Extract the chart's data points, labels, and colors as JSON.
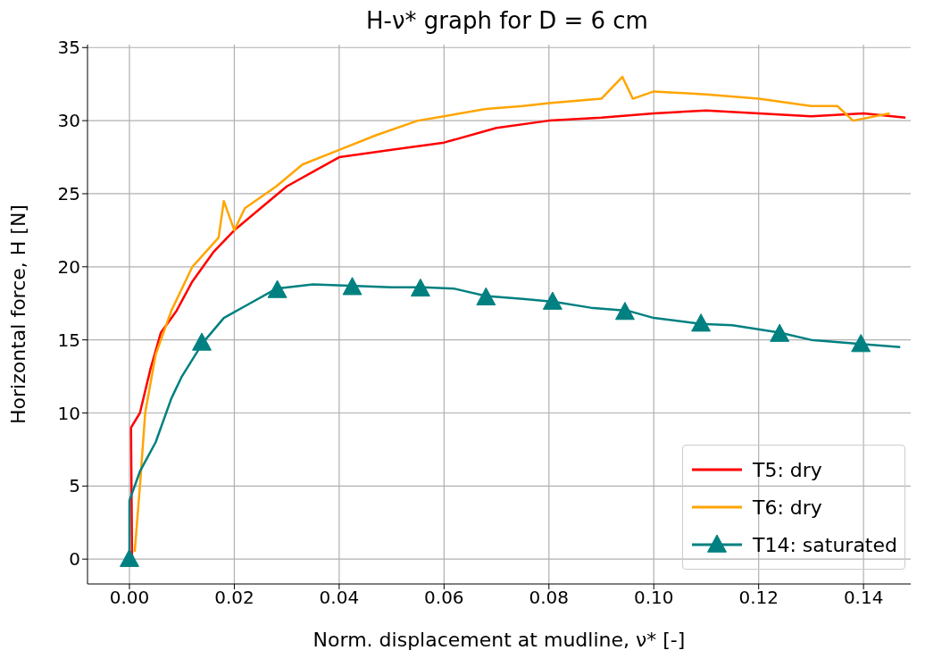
{
  "chart_data": {
    "type": "line",
    "title": "H-ν* graph for D = 6 cm",
    "xlabel": "Norm. displacement at mudline, ν* [-]",
    "ylabel": "Horizontal force, H [N]",
    "xlim": [
      -0.008,
      0.149
    ],
    "ylim": [
      -1.7,
      35.2
    ],
    "xticks": [
      {
        "value": 0,
        "label": "0.00"
      },
      {
        "value": 0.02,
        "label": "0.02"
      },
      {
        "value": 0.04,
        "label": "0.04"
      },
      {
        "value": 0.06,
        "label": "0.06"
      },
      {
        "value": 0.08,
        "label": "0.08"
      },
      {
        "value": 0.1,
        "label": "0.10"
      },
      {
        "value": 0.12,
        "label": "0.12"
      },
      {
        "value": 0.14,
        "label": "0.14"
      }
    ],
    "yticks": [
      0,
      5,
      10,
      15,
      20,
      25,
      30,
      35
    ],
    "grid": true,
    "legend": "bottom right",
    "line_style": "solid",
    "series": [
      {
        "name": "T5: dry",
        "color": "#ff0000",
        "x": [
          0.0005,
          0.0003,
          0.002,
          0.004,
          0.006,
          0.009,
          0.012,
          0.016,
          0.02,
          0.025,
          0.03,
          0.035,
          0.04,
          0.05,
          0.06,
          0.07,
          0.08,
          0.09,
          0.1,
          0.11,
          0.12,
          0.13,
          0.14,
          0.148
        ],
        "values": [
          0,
          9,
          10,
          13,
          15.5,
          17,
          19,
          21,
          22.5,
          24,
          25.5,
          26.5,
          27.5,
          28,
          28.5,
          29.5,
          30,
          30.2,
          30.5,
          30.7,
          30.5,
          30.3,
          30.5,
          30.2
        ]
      },
      {
        "name": "T6: dry",
        "color": "#ffa500",
        "x": [
          0.001,
          0.002,
          0.003,
          0.005,
          0.008,
          0.012,
          0.017,
          0.018,
          0.02,
          0.022,
          0.028,
          0.033,
          0.04,
          0.047,
          0.055,
          0.06,
          0.068,
          0.075,
          0.08,
          0.09,
          0.094,
          0.096,
          0.1,
          0.11,
          0.12,
          0.13,
          0.135,
          0.138,
          0.145
        ],
        "values": [
          0.5,
          5,
          10,
          14,
          17,
          20,
          22,
          24.5,
          22.5,
          24,
          25.5,
          27,
          28,
          29,
          30,
          30.3,
          30.8,
          31,
          31.2,
          31.5,
          33,
          31.5,
          32,
          31.8,
          31.5,
          31,
          31,
          30,
          30.5
        ]
      },
      {
        "color": "#008080",
        "x": [
          0,
          0,
          0.002,
          0.005,
          0.008,
          0.01,
          0.014,
          0.018,
          0.022,
          0.028,
          0.035,
          0.042,
          0.05,
          0.056,
          0.062,
          0.068,
          0.075,
          0.081,
          0.088,
          0.095,
          0.1,
          0.109,
          0.115,
          0.124,
          0.13,
          0.14,
          0.147
        ],
        "values": [
          0,
          4,
          6,
          8,
          11,
          12.5,
          14.8,
          16.5,
          17.3,
          18.5,
          18.8,
          18.7,
          18.6,
          18.6,
          18.5,
          18,
          17.8,
          17.6,
          17.2,
          17,
          16.5,
          16.1,
          16,
          15.5,
          15,
          14.7,
          14.5
        ]
      },
      {
        "name": "T14: saturated",
        "color": "#008080",
        "type": "scatter",
        "marker": "triangle",
        "x": [
          0,
          0.0138,
          0.0282,
          0.0425,
          0.0555,
          0.068,
          0.0807,
          0.0945,
          0.109,
          0.124,
          0.1395
        ],
        "values": [
          0,
          14.8,
          18.4,
          18.6,
          18.5,
          17.9,
          17.6,
          16.9,
          16.1,
          15.4,
          14.7
        ]
      }
    ]
  }
}
